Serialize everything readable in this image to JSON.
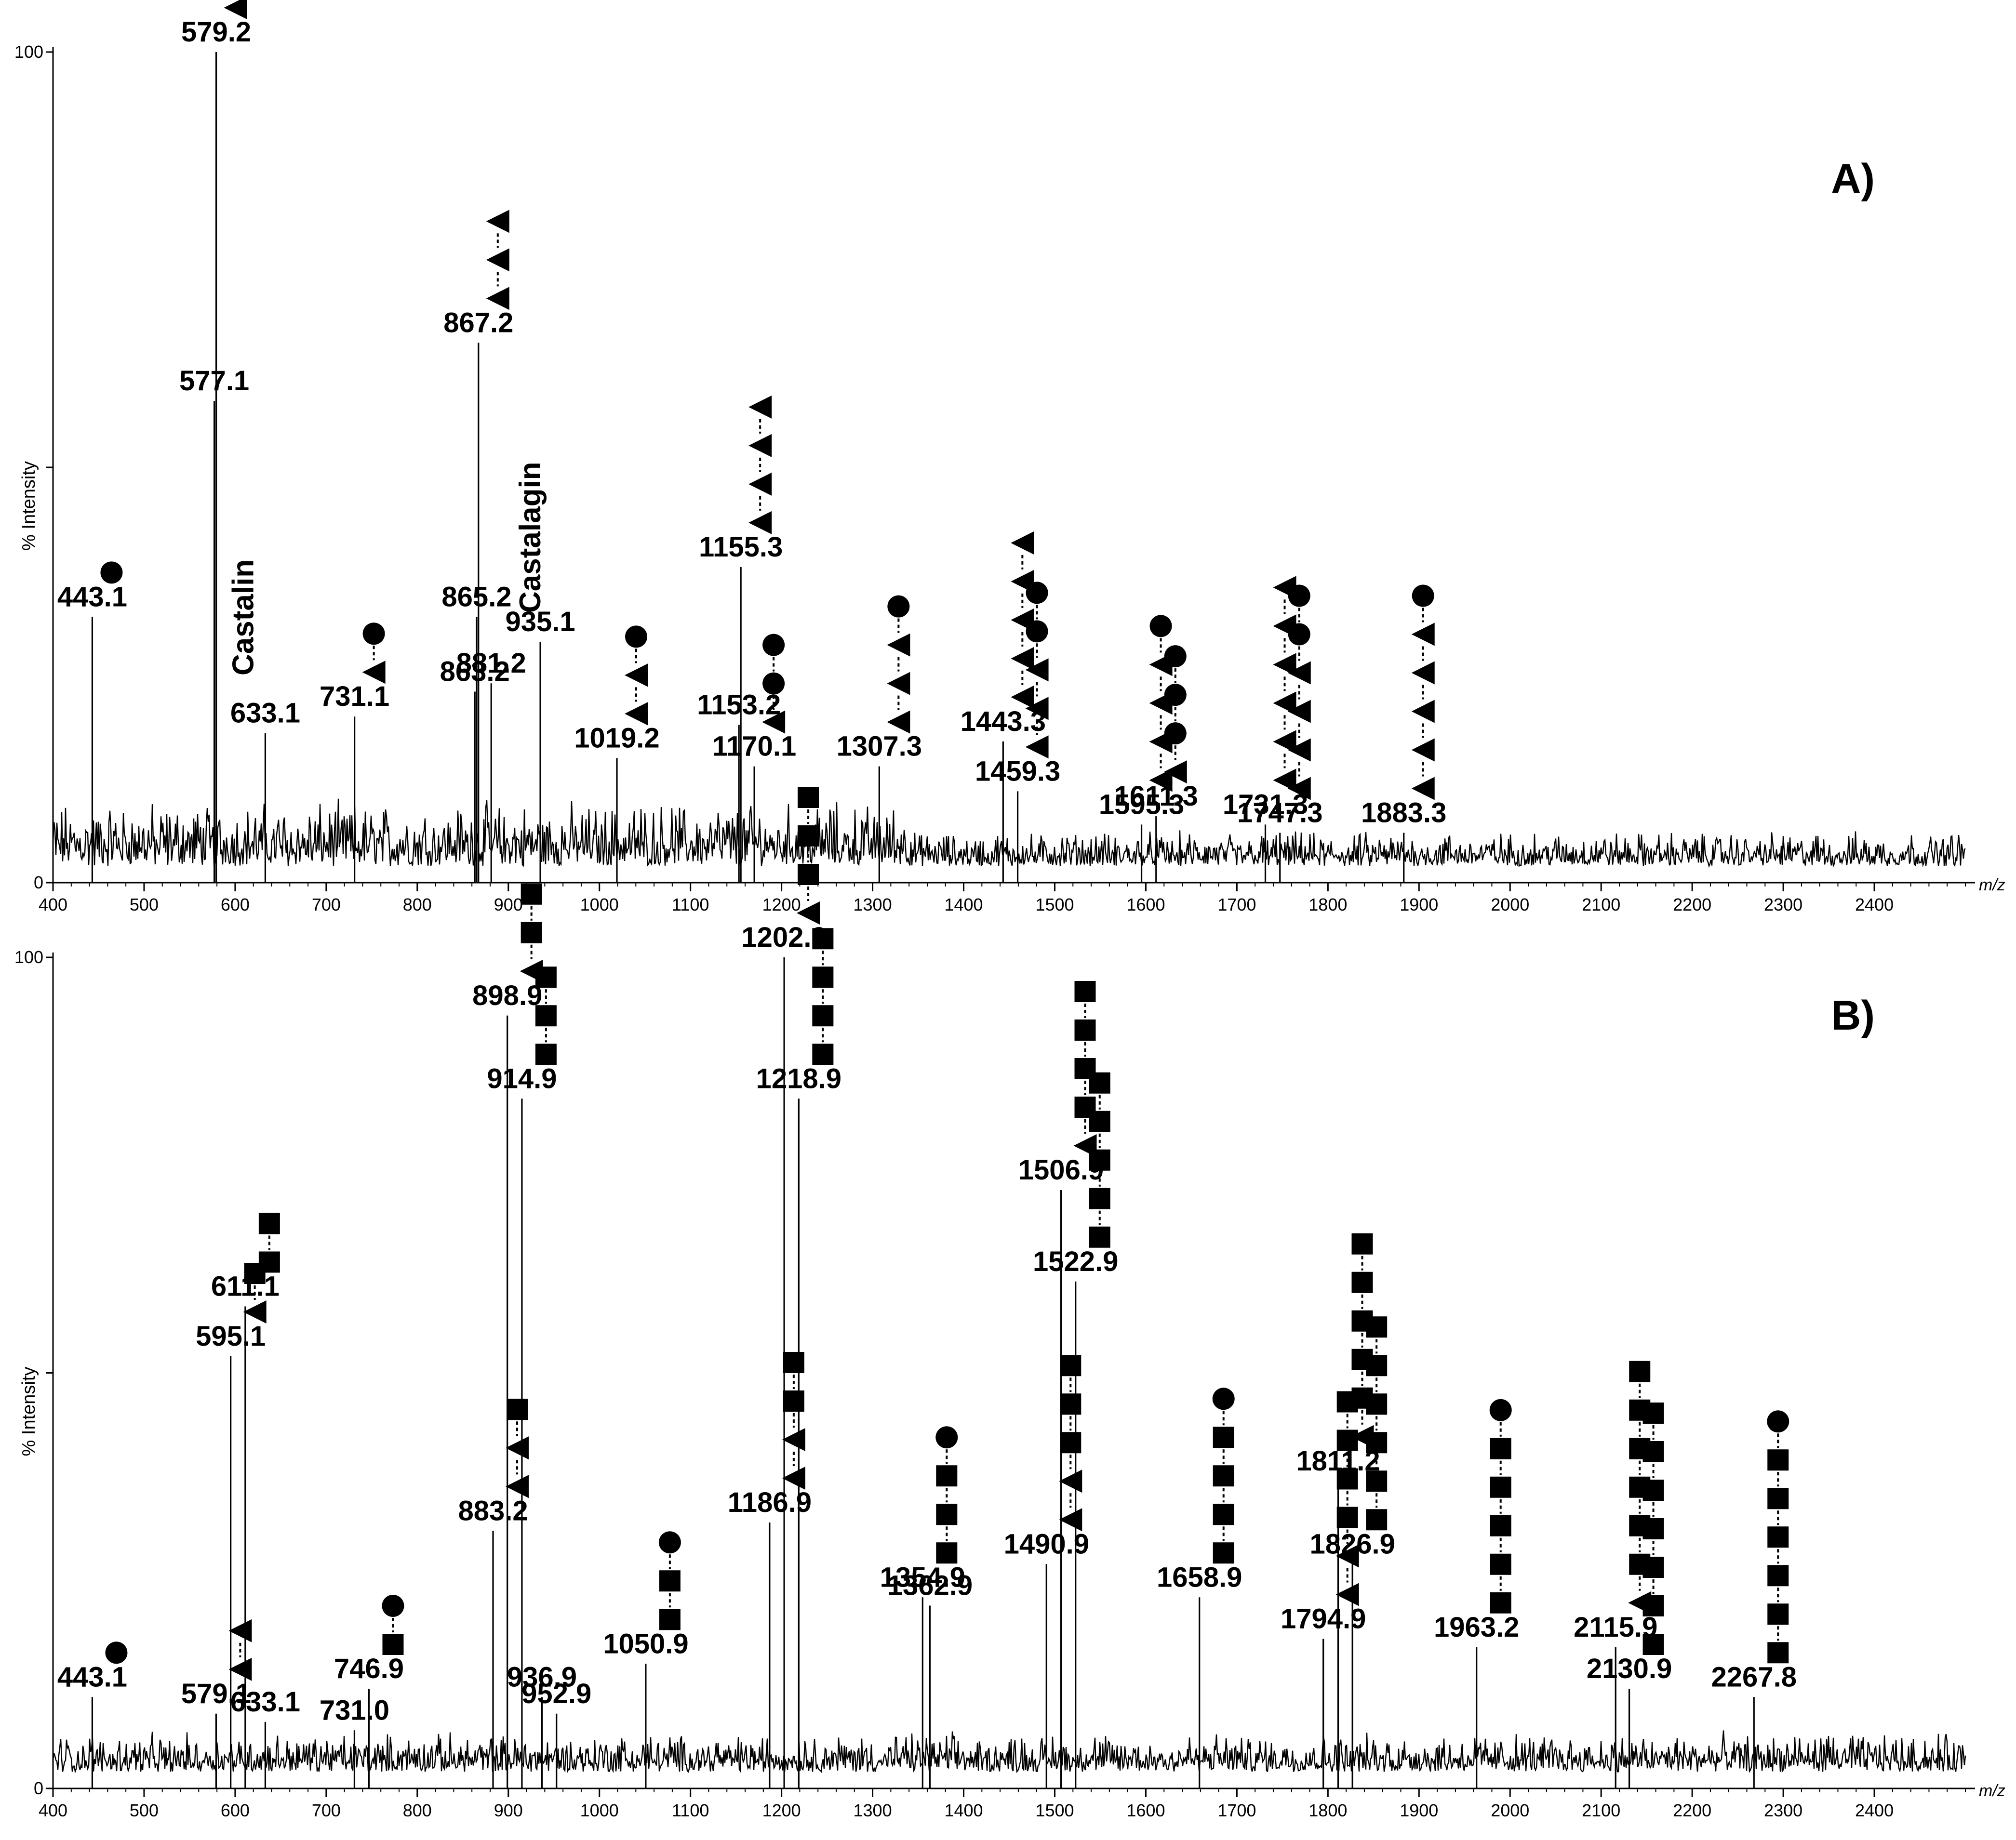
{
  "chart_data": [
    {
      "type": "line",
      "panel": "A)",
      "xlabel": "m/z",
      "ylabel": "% Intensity",
      "xlim": [
        400,
        2500
      ],
      "ylim": [
        0,
        100
      ],
      "x_ticks": [
        400,
        500,
        600,
        700,
        800,
        900,
        1000,
        1100,
        1200,
        1300,
        1400,
        1500,
        1600,
        1700,
        1800,
        1900,
        2000,
        2100,
        2200,
        2300,
        2400
      ],
      "y_ticks": [
        0,
        100
      ],
      "baseline": 2,
      "peaks": [
        {
          "x": 443.1,
          "y": 32,
          "label": "443.1",
          "glycans": [
            "circle"
          ]
        },
        {
          "x": 577.1,
          "y": 58,
          "label": "577.1",
          "glycans": []
        },
        {
          "x": 579.2,
          "y": 100,
          "label": "579.2",
          "glycans": [
            "triangle",
            "triangle"
          ]
        },
        {
          "x": 633.1,
          "y": 18,
          "label": "633.1",
          "glycans": []
        },
        {
          "x": 731.1,
          "y": 20,
          "label": "731.1",
          "glycans": [
            "circle",
            "triangle"
          ]
        },
        {
          "x": 863.2,
          "y": 23,
          "label": "863.2",
          "glycans": []
        },
        {
          "x": 865.2,
          "y": 32,
          "label": "865.2",
          "glycans": []
        },
        {
          "x": 867.2,
          "y": 65,
          "label": "867.2",
          "glycans": [
            "triangle",
            "triangle",
            "triangle"
          ]
        },
        {
          "x": 881.2,
          "y": 24,
          "label": "881.2",
          "glycans": []
        },
        {
          "x": 935.1,
          "y": 29,
          "label": "935.1",
          "glycans": []
        },
        {
          "x": 1019.2,
          "y": 15,
          "label": "1019.2",
          "glycans": [
            "circle",
            "triangle",
            "triangle"
          ]
        },
        {
          "x": 1153.2,
          "y": 19,
          "label": "1153.2",
          "glycans": []
        },
        {
          "x": 1155.3,
          "y": 38,
          "label": "1155.3",
          "glycans": [
            "triangle",
            "triangle",
            "triangle",
            "triangle"
          ]
        },
        {
          "x": 1170.1,
          "y": 14,
          "label": "1170.1",
          "glycans": [
            "circle",
            "circle",
            "triangle"
          ]
        },
        {
          "x": 1307.3,
          "y": 14,
          "label": "1307.3",
          "glycans": [
            "circle",
            "triangle",
            "triangle",
            "triangle"
          ]
        },
        {
          "x": 1443.3,
          "y": 17,
          "label": "1443.3",
          "glycans": [
            "triangle",
            "triangle",
            "triangle",
            "triangle",
            "triangle"
          ]
        },
        {
          "x": 1459.3,
          "y": 11,
          "label": "1459.3",
          "glycans": [
            "circle",
            "circle",
            "triangle",
            "triangle",
            "triangle"
          ]
        },
        {
          "x": 1595.3,
          "y": 7,
          "label": "1595.3",
          "glycans": [
            "circle",
            "triangle",
            "triangle",
            "triangle",
            "triangle"
          ]
        },
        {
          "x": 1611.3,
          "y": 8,
          "label": "1611.3",
          "glycans": [
            "circle",
            "circle",
            "circle",
            "triangle"
          ]
        },
        {
          "x": 1731.3,
          "y": 7,
          "label": "1731.3",
          "glycans": [
            "triangle",
            "triangle",
            "triangle",
            "triangle",
            "triangle",
            "triangle"
          ]
        },
        {
          "x": 1747.3,
          "y": 6,
          "label": "1747.3",
          "glycans": [
            "circle",
            "circle",
            "triangle",
            "triangle",
            "triangle",
            "triangle"
          ]
        },
        {
          "x": 1883.3,
          "y": 6,
          "label": "1883.3",
          "glycans": [
            "circle",
            "triangle",
            "triangle",
            "triangle",
            "triangle",
            "triangle"
          ]
        }
      ],
      "annotations": [
        {
          "text": "Castalin",
          "x": 620
        },
        {
          "text": "Castalagin",
          "x": 935
        }
      ]
    },
    {
      "type": "line",
      "panel": "B)",
      "xlabel": "m/z",
      "ylabel": "% Intensity",
      "xlim": [
        400,
        2500
      ],
      "ylim": [
        0,
        100
      ],
      "x_ticks": [
        400,
        500,
        600,
        700,
        800,
        900,
        1000,
        1100,
        1200,
        1300,
        1400,
        1500,
        1600,
        1700,
        1800,
        1900,
        2000,
        2100,
        2200,
        2300,
        2400
      ],
      "y_ticks": [
        0,
        100
      ],
      "baseline": 2,
      "peaks": [
        {
          "x": 443.1,
          "y": 11,
          "label": "443.1",
          "glycans": [
            "circle"
          ]
        },
        {
          "x": 579.1,
          "y": 9,
          "label": "579.1",
          "glycans": [
            "triangle",
            "triangle"
          ]
        },
        {
          "x": 595.1,
          "y": 52,
          "label": "595.1",
          "glycans": [
            "square",
            "triangle"
          ]
        },
        {
          "x": 611.1,
          "y": 58,
          "label": "611.1",
          "glycans": [
            "square",
            "square"
          ]
        },
        {
          "x": 633.1,
          "y": 8,
          "label": "633.1",
          "glycans": []
        },
        {
          "x": 731.0,
          "y": 7,
          "label": "731.0",
          "glycans": []
        },
        {
          "x": 746.9,
          "y": 12,
          "label": "746.9",
          "glycans": [
            "circle",
            "square"
          ]
        },
        {
          "x": 883.2,
          "y": 31,
          "label": "883.2",
          "glycans": [
            "square",
            "triangle",
            "triangle"
          ]
        },
        {
          "x": 898.9,
          "y": 93,
          "label": "898.9",
          "glycans": [
            "square",
            "square",
            "triangle"
          ]
        },
        {
          "x": 914.9,
          "y": 83,
          "label": "914.9",
          "glycans": [
            "square",
            "square",
            "square"
          ]
        },
        {
          "x": 936.9,
          "y": 11,
          "label": "936.9",
          "glycans": []
        },
        {
          "x": 952.9,
          "y": 9,
          "label": "952.9",
          "glycans": []
        },
        {
          "x": 1050.9,
          "y": 15,
          "label": "1050.9",
          "glycans": [
            "circle",
            "square",
            "square"
          ]
        },
        {
          "x": 1186.9,
          "y": 32,
          "label": "1186.9",
          "glycans": [
            "square",
            "square",
            "triangle",
            "triangle"
          ]
        },
        {
          "x": 1202.9,
          "y": 100,
          "label": "1202.9",
          "glycans": [
            "square",
            "square",
            "square",
            "triangle"
          ]
        },
        {
          "x": 1218.9,
          "y": 83,
          "label": "1218.9",
          "glycans": [
            "square",
            "square",
            "square",
            "square"
          ]
        },
        {
          "x": 1354.9,
          "y": 23,
          "label": "1354.9",
          "glycans": [
            "circle",
            "square",
            "square",
            "square"
          ]
        },
        {
          "x": 1362.9,
          "y": 22,
          "label": "1362.9",
          "glycans": []
        },
        {
          "x": 1490.9,
          "y": 27,
          "label": "1490.9",
          "glycans": [
            "square",
            "square",
            "square",
            "triangle",
            "triangle"
          ]
        },
        {
          "x": 1506.9,
          "y": 72,
          "label": "1506.9",
          "glycans": [
            "square",
            "square",
            "square",
            "square",
            "triangle"
          ]
        },
        {
          "x": 1522.9,
          "y": 61,
          "label": "1522.9",
          "glycans": [
            "square",
            "square",
            "square",
            "square",
            "square"
          ]
        },
        {
          "x": 1658.9,
          "y": 23,
          "label": "1658.9",
          "glycans": [
            "circle",
            "square",
            "square",
            "square",
            "square"
          ]
        },
        {
          "x": 1794.9,
          "y": 18,
          "label": "1794.9",
          "glycans": [
            "square",
            "square",
            "square",
            "square",
            "triangle",
            "triangle"
          ]
        },
        {
          "x": 1811.2,
          "y": 37,
          "label": "1811.2",
          "glycans": [
            "square",
            "square",
            "square",
            "square",
            "square",
            "triangle"
          ]
        },
        {
          "x": 1826.9,
          "y": 27,
          "label": "1826.9",
          "glycans": [
            "square",
            "square",
            "square",
            "square",
            "square",
            "square"
          ]
        },
        {
          "x": 1963.2,
          "y": 17,
          "label": "1963.2",
          "glycans": [
            "circle",
            "square",
            "square",
            "square",
            "square",
            "square"
          ]
        },
        {
          "x": 2115.9,
          "y": 17,
          "label": "2115.9",
          "glycans": [
            "square",
            "square",
            "square",
            "square",
            "square",
            "square",
            "triangle"
          ]
        },
        {
          "x": 2130.9,
          "y": 12,
          "label": "2130.9",
          "glycans": [
            "square",
            "square",
            "square",
            "square",
            "square",
            "square",
            "square"
          ]
        },
        {
          "x": 2267.8,
          "y": 11,
          "label": "2267.8",
          "glycans": [
            "circle",
            "square",
            "square",
            "square",
            "square",
            "square",
            "square"
          ]
        }
      ],
      "annotations": []
    }
  ]
}
